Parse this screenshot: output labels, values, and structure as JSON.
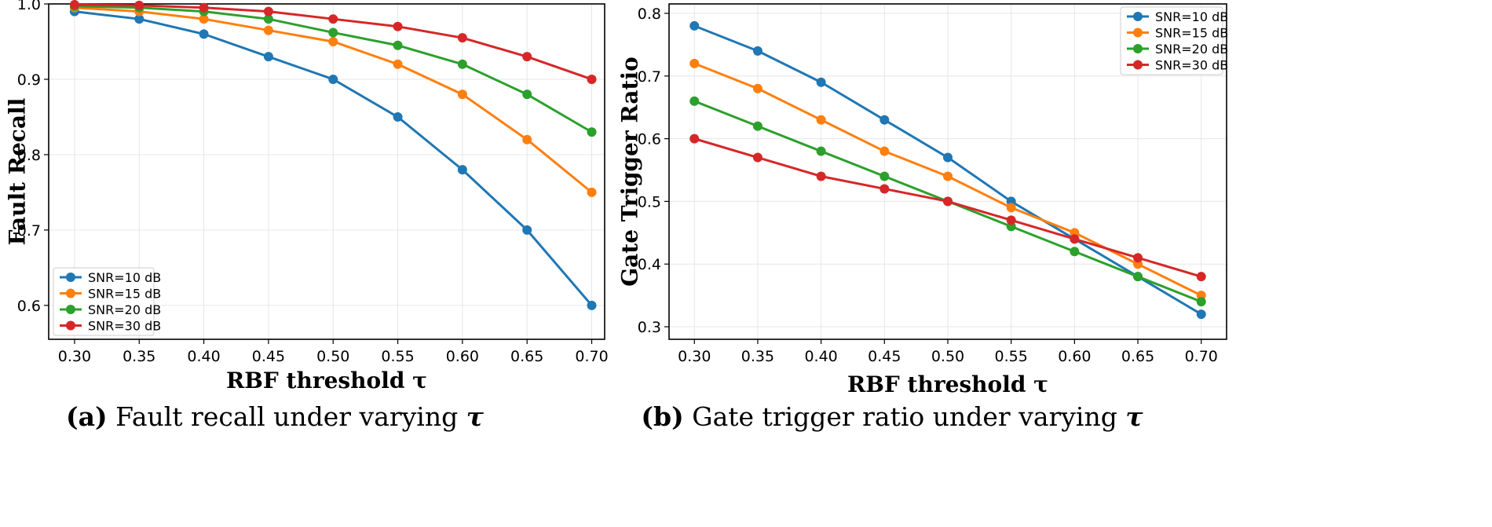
{
  "chart_data": [
    {
      "type": "line",
      "xlabel": "RBF threshold τ",
      "ylabel": "Fault Recall",
      "x": [
        0.3,
        0.35,
        0.4,
        0.45,
        0.5,
        0.55,
        0.6,
        0.65,
        0.7
      ],
      "xticks": [
        "0.30",
        "0.35",
        "0.40",
        "0.45",
        "0.50",
        "0.55",
        "0.60",
        "0.65",
        "0.70"
      ],
      "xlim": [
        0.28,
        0.71
      ],
      "ylim": [
        0.555,
        1.0
      ],
      "yticks": [
        "0.6",
        "0.7",
        "0.8",
        "0.9",
        "1.0"
      ],
      "ytick_values": [
        0.6,
        0.7,
        0.8,
        0.9,
        1.0
      ],
      "grid": true,
      "legend_position": "bottom-left",
      "caption": {
        "label": "(a)",
        "text": "Fault recall under varying",
        "symbol": "τ"
      },
      "series": [
        {
          "name": "SNR=10 dB",
          "color": "#1f77b4",
          "values": [
            0.99,
            0.98,
            0.96,
            0.93,
            0.9,
            0.85,
            0.78,
            0.7,
            0.6
          ]
        },
        {
          "name": "SNR=15 dB",
          "color": "#ff7f0e",
          "values": [
            0.995,
            0.99,
            0.98,
            0.965,
            0.95,
            0.92,
            0.88,
            0.82,
            0.75
          ]
        },
        {
          "name": "SNR=20 dB",
          "color": "#2ca02c",
          "values": [
            0.997,
            0.995,
            0.99,
            0.98,
            0.962,
            0.945,
            0.92,
            0.88,
            0.83
          ]
        },
        {
          "name": "SNR=30 dB",
          "color": "#d62728",
          "values": [
            0.999,
            0.998,
            0.995,
            0.99,
            0.98,
            0.97,
            0.955,
            0.93,
            0.9
          ]
        }
      ]
    },
    {
      "type": "line",
      "xlabel": "RBF threshold τ",
      "ylabel": "Gate Trigger Ratio",
      "x": [
        0.3,
        0.35,
        0.4,
        0.45,
        0.5,
        0.55,
        0.6,
        0.65,
        0.7
      ],
      "xticks": [
        "0.30",
        "0.35",
        "0.40",
        "0.45",
        "0.50",
        "0.55",
        "0.60",
        "0.65",
        "0.70"
      ],
      "xlim": [
        0.28,
        0.72
      ],
      "ylim": [
        0.28,
        0.815
      ],
      "yticks": [
        "0.3",
        "0.4",
        "0.5",
        "0.6",
        "0.7",
        "0.8"
      ],
      "ytick_values": [
        0.3,
        0.4,
        0.5,
        0.6,
        0.7,
        0.8
      ],
      "grid": true,
      "legend_position": "top-right",
      "caption": {
        "label": "(b)",
        "text": "Gate trigger ratio under varying",
        "symbol": "τ"
      },
      "series": [
        {
          "name": "SNR=10 dB",
          "color": "#1f77b4",
          "values": [
            0.78,
            0.74,
            0.69,
            0.63,
            0.57,
            0.5,
            0.44,
            0.38,
            0.32
          ]
        },
        {
          "name": "SNR=15 dB",
          "color": "#ff7f0e",
          "values": [
            0.72,
            0.68,
            0.63,
            0.58,
            0.54,
            0.49,
            0.45,
            0.4,
            0.35
          ]
        },
        {
          "name": "SNR=20 dB",
          "color": "#2ca02c",
          "values": [
            0.66,
            0.62,
            0.58,
            0.54,
            0.5,
            0.46,
            0.42,
            0.38,
            0.34
          ]
        },
        {
          "name": "SNR=30 dB",
          "color": "#d62728",
          "values": [
            0.6,
            0.57,
            0.54,
            0.52,
            0.5,
            0.47,
            0.44,
            0.41,
            0.38
          ]
        }
      ]
    }
  ]
}
